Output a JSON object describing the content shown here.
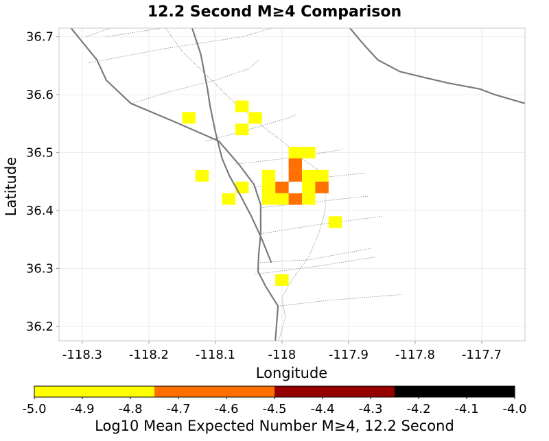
{
  "chart_data": {
    "type": "heatmap",
    "title": "12.2 Second M≥4 Comparison",
    "xlabel": "Longitude",
    "ylabel": "Latitude",
    "xlim": [
      -118.335,
      -117.635
    ],
    "ylim": [
      36.175,
      36.715
    ],
    "x_ticks": [
      "-118.3",
      "-118.2",
      "-118.1",
      "-118",
      "-117.9",
      "-117.8",
      "-117.7"
    ],
    "x_tick_values": [
      -118.3,
      -118.2,
      -118.1,
      -118.0,
      -117.9,
      -117.8,
      -117.7
    ],
    "y_ticks": [
      "36.7",
      "36.6",
      "36.5",
      "36.4",
      "36.3",
      "36.2"
    ],
    "y_tick_values": [
      36.7,
      36.6,
      36.5,
      36.4,
      36.3,
      36.2
    ],
    "grid": true,
    "cell_size_deg": 0.02,
    "cells": [
      {
        "lon": -118.14,
        "lat": 36.56,
        "value": -4.9
      },
      {
        "lon": -118.06,
        "lat": 36.58,
        "value": -4.9
      },
      {
        "lon": -118.04,
        "lat": 36.56,
        "value": -4.9
      },
      {
        "lon": -118.06,
        "lat": 36.54,
        "value": -4.9
      },
      {
        "lon": -117.98,
        "lat": 36.5,
        "value": -4.9
      },
      {
        "lon": -117.96,
        "lat": 36.5,
        "value": -4.9
      },
      {
        "lon": -117.98,
        "lat": 36.48,
        "value": -4.6
      },
      {
        "lon": -117.98,
        "lat": 36.46,
        "value": -4.6
      },
      {
        "lon": -118.12,
        "lat": 36.46,
        "value": -4.9
      },
      {
        "lon": -118.02,
        "lat": 36.46,
        "value": -4.9
      },
      {
        "lon": -117.96,
        "lat": 36.46,
        "value": -4.9
      },
      {
        "lon": -117.94,
        "lat": 36.46,
        "value": -4.9
      },
      {
        "lon": -118.06,
        "lat": 36.44,
        "value": -4.9
      },
      {
        "lon": -118.02,
        "lat": 36.44,
        "value": -4.9
      },
      {
        "lon": -118.0,
        "lat": 36.44,
        "value": -4.6
      },
      {
        "lon": -117.96,
        "lat": 36.44,
        "value": -4.9
      },
      {
        "lon": -117.94,
        "lat": 36.44,
        "value": -4.6
      },
      {
        "lon": -118.08,
        "lat": 36.42,
        "value": -4.9
      },
      {
        "lon": -118.02,
        "lat": 36.42,
        "value": -4.9
      },
      {
        "lon": -118.0,
        "lat": 36.42,
        "value": -4.9
      },
      {
        "lon": -117.98,
        "lat": 36.42,
        "value": -4.6
      },
      {
        "lon": -117.96,
        "lat": 36.42,
        "value": -4.9
      },
      {
        "lon": -117.92,
        "lat": 36.38,
        "value": -4.9
      },
      {
        "lon": -118.0,
        "lat": 36.28,
        "value": -4.9
      }
    ],
    "faults": [
      [
        [
          -118.317,
          36.715
        ],
        [
          -118.278,
          36.66
        ],
        [
          -118.264,
          36.625
        ],
        [
          -118.227,
          36.585
        ],
        [
          -118.165,
          36.555
        ],
        [
          -118.095,
          36.52
        ],
        [
          -118.065,
          36.48
        ],
        [
          -118.042,
          36.445
        ],
        [
          -118.032,
          36.41
        ],
        [
          -118.032,
          36.36
        ],
        [
          -118.035,
          36.325
        ],
        [
          -118.036,
          36.295
        ],
        [
          -118.025,
          36.27
        ],
        [
          -118.006,
          36.235
        ],
        [
          -118.01,
          36.175
        ]
      ],
      [
        [
          -118.135,
          36.715
        ],
        [
          -118.122,
          36.67
        ],
        [
          -118.112,
          36.61
        ],
        [
          -118.108,
          36.58
        ],
        [
          -118.1,
          36.535
        ],
        [
          -118.09,
          36.49
        ],
        [
          -118.079,
          36.46
        ],
        [
          -118.062,
          36.425
        ],
        [
          -118.046,
          36.39
        ],
        [
          -118.03,
          36.35
        ],
        [
          -118.016,
          36.31
        ]
      ],
      [
        [
          -117.898,
          36.715
        ],
        [
          -117.876,
          36.685
        ],
        [
          -117.856,
          36.66
        ],
        [
          -117.823,
          36.64
        ],
        [
          -117.787,
          36.63
        ],
        [
          -117.75,
          36.62
        ],
        [
          -117.703,
          36.61
        ],
        [
          -117.68,
          36.6
        ],
        [
          -117.635,
          36.585
        ]
      ]
    ],
    "boundaries": [
      [
        [
          -118.295,
          36.7
        ],
        [
          -118.258,
          36.715
        ]
      ],
      [
        [
          -118.265,
          36.7
        ],
        [
          -118.18,
          36.715
        ]
      ],
      [
        [
          -118.29,
          36.655
        ],
        [
          -118.175,
          36.68
        ],
        [
          -118.06,
          36.7
        ],
        [
          -118.015,
          36.715
        ]
      ],
      [
        [
          -118.225,
          36.585
        ],
        [
          -118.17,
          36.605
        ],
        [
          -118.1,
          36.625
        ],
        [
          -118.05,
          36.645
        ],
        [
          -118.035,
          36.66
        ]
      ],
      [
        [
          -118.115,
          36.52
        ],
        [
          -118.065,
          36.535
        ],
        [
          -117.99,
          36.56
        ],
        [
          -117.98,
          36.565
        ]
      ],
      [
        [
          -118.07,
          36.48
        ],
        [
          -117.995,
          36.49
        ],
        [
          -117.91,
          36.505
        ]
      ],
      [
        [
          -118.045,
          36.44
        ],
        [
          -117.955,
          36.455
        ],
        [
          -117.875,
          36.465
        ]
      ],
      [
        [
          -118.032,
          36.405
        ],
        [
          -117.95,
          36.415
        ],
        [
          -117.87,
          36.425
        ]
      ],
      [
        [
          -118.032,
          36.36
        ],
        [
          -117.95,
          36.375
        ],
        [
          -117.85,
          36.39
        ]
      ],
      [
        [
          -118.036,
          36.31
        ],
        [
          -117.96,
          36.315
        ],
        [
          -117.865,
          36.335
        ]
      ],
      [
        [
          -118.04,
          36.29
        ],
        [
          -117.94,
          36.305
        ],
        [
          -117.86,
          36.32
        ]
      ],
      [
        [
          -118.006,
          36.235
        ],
        [
          -117.93,
          36.245
        ],
        [
          -117.82,
          36.255
        ]
      ],
      [
        [
          -118.175,
          36.715
        ],
        [
          -118.15,
          36.675
        ],
        [
          -118.11,
          36.63
        ],
        [
          -118.075,
          36.59
        ],
        [
          -118.04,
          36.555
        ],
        [
          -118.0,
          36.52
        ],
        [
          -117.97,
          36.49
        ],
        [
          -117.94,
          36.465
        ],
        [
          -117.935,
          36.43
        ],
        [
          -117.935,
          36.4
        ],
        [
          -117.945,
          36.36
        ],
        [
          -117.96,
          36.32
        ],
        [
          -117.985,
          36.28
        ],
        [
          -118.0,
          36.25
        ],
        [
          -117.995,
          36.215
        ],
        [
          -118.005,
          36.175
        ]
      ]
    ],
    "colorbar": {
      "label": "Log10 Mean Expected Number M≥4, 12.2 Second",
      "min": -5.0,
      "max": -4.0,
      "tick_labels": [
        "-5.0",
        "-4.9",
        "-4.8",
        "-4.7",
        "-4.6",
        "-4.5",
        "-4.4",
        "-4.3",
        "-4.2",
        "-4.1",
        "-4.0"
      ],
      "bins": [
        {
          "from": -5.0,
          "to": -4.75,
          "color": "#ffff00"
        },
        {
          "from": -4.75,
          "to": -4.5,
          "color": "#ff7000"
        },
        {
          "from": -4.5,
          "to": -4.25,
          "color": "#940000"
        },
        {
          "from": -4.25,
          "to": -4.0,
          "color": "#000000"
        }
      ]
    }
  }
}
